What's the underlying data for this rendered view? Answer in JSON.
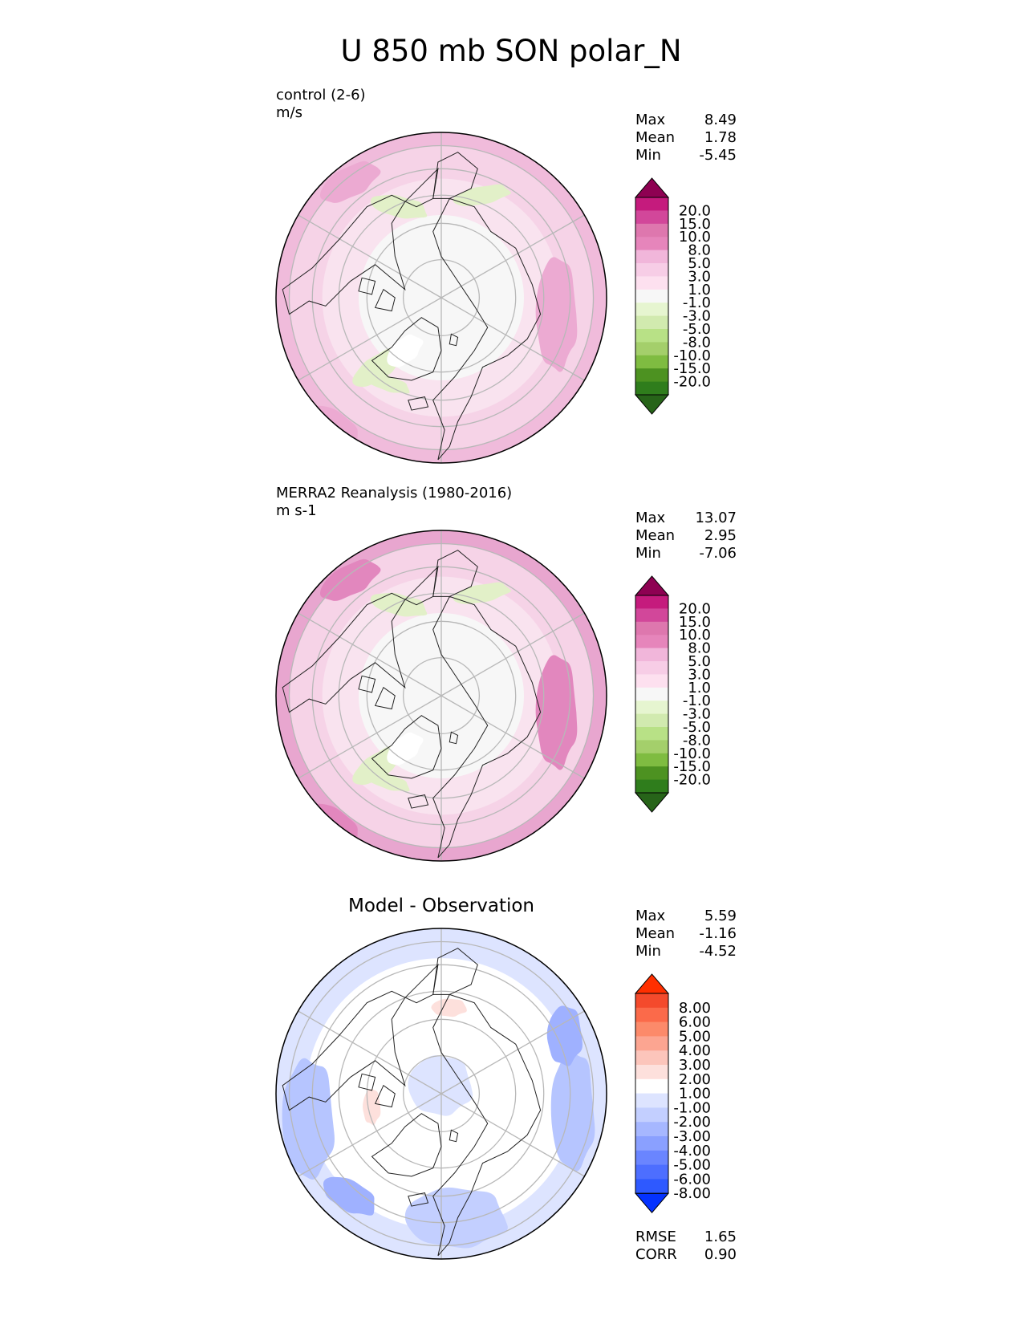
{
  "title": "U 850 mb SON polar_N",
  "colors": {
    "pink_green": [
      "#276419",
      "#2f7d1c",
      "#4d9221",
      "#7fbc41",
      "#a4cf6b",
      "#b8e186",
      "#d1eaaf",
      "#e6f5d0",
      "#f7f7f7",
      "#fde0ef",
      "#f7cde6",
      "#f1b6da",
      "#e685bb",
      "#de77ae",
      "#d2479a",
      "#c51b7d",
      "#8e0152"
    ],
    "blue_red": [
      "#0432ff",
      "#2e59ff",
      "#4d6eff",
      "#6a85ff",
      "#8aa0ff",
      "#a6b7ff",
      "#c3cfff",
      "#dde4ff",
      "#ffffff",
      "#fde0dc",
      "#fcc5bb",
      "#fca591",
      "#fc8a6a",
      "#fb6a4a",
      "#f44a2c",
      "#ff2f00"
    ],
    "map_fill_pink": "#f6d3e7",
    "map_fill_white": "#f7f7f7",
    "map_fill_blue": "#dde4ff"
  },
  "panels": [
    {
      "label_line1": "control (2-6)",
      "label_line2": "m/s",
      "centered_title": "",
      "stats": [
        {
          "name": "Max",
          "value": "8.49"
        },
        {
          "name": "Mean",
          "value": "1.78"
        },
        {
          "name": "Min",
          "value": "-5.45"
        }
      ],
      "palette": "pink_green",
      "ticks": [
        "20.0",
        "15.0",
        "10.0",
        "8.0",
        "5.0",
        "3.0",
        "1.0",
        "-1.0",
        "-3.0",
        "-5.0",
        "-8.0",
        "-10.0",
        "-15.0",
        "-20.0"
      ],
      "extra_stats": []
    },
    {
      "label_line1": "MERRA2 Reanalysis (1980-2016)",
      "label_line2": "m s-1",
      "centered_title": "",
      "stats": [
        {
          "name": "Max",
          "value": "13.07"
        },
        {
          "name": "Mean",
          "value": "2.95"
        },
        {
          "name": "Min",
          "value": "-7.06"
        }
      ],
      "palette": "pink_green",
      "ticks": [
        "20.0",
        "15.0",
        "10.0",
        "8.0",
        "5.0",
        "3.0",
        "1.0",
        "-1.0",
        "-3.0",
        "-5.0",
        "-8.0",
        "-10.0",
        "-15.0",
        "-20.0"
      ],
      "extra_stats": []
    },
    {
      "label_line1": "",
      "label_line2": "",
      "centered_title": "Model - Observation",
      "stats": [
        {
          "name": "Max",
          "value": "5.59"
        },
        {
          "name": "Mean",
          "value": "-1.16"
        },
        {
          "name": "Min",
          "value": "-4.52"
        }
      ],
      "palette": "blue_red",
      "ticks": [
        "8.00",
        "6.00",
        "5.00",
        "4.00",
        "3.00",
        "2.00",
        "1.00",
        "-1.00",
        "-2.00",
        "-3.00",
        "-4.00",
        "-5.00",
        "-6.00",
        "-8.00"
      ],
      "extra_stats": [
        {
          "name": "RMSE",
          "value": "1.65"
        },
        {
          "name": "CORR",
          "value": "0.90"
        }
      ]
    }
  ]
}
